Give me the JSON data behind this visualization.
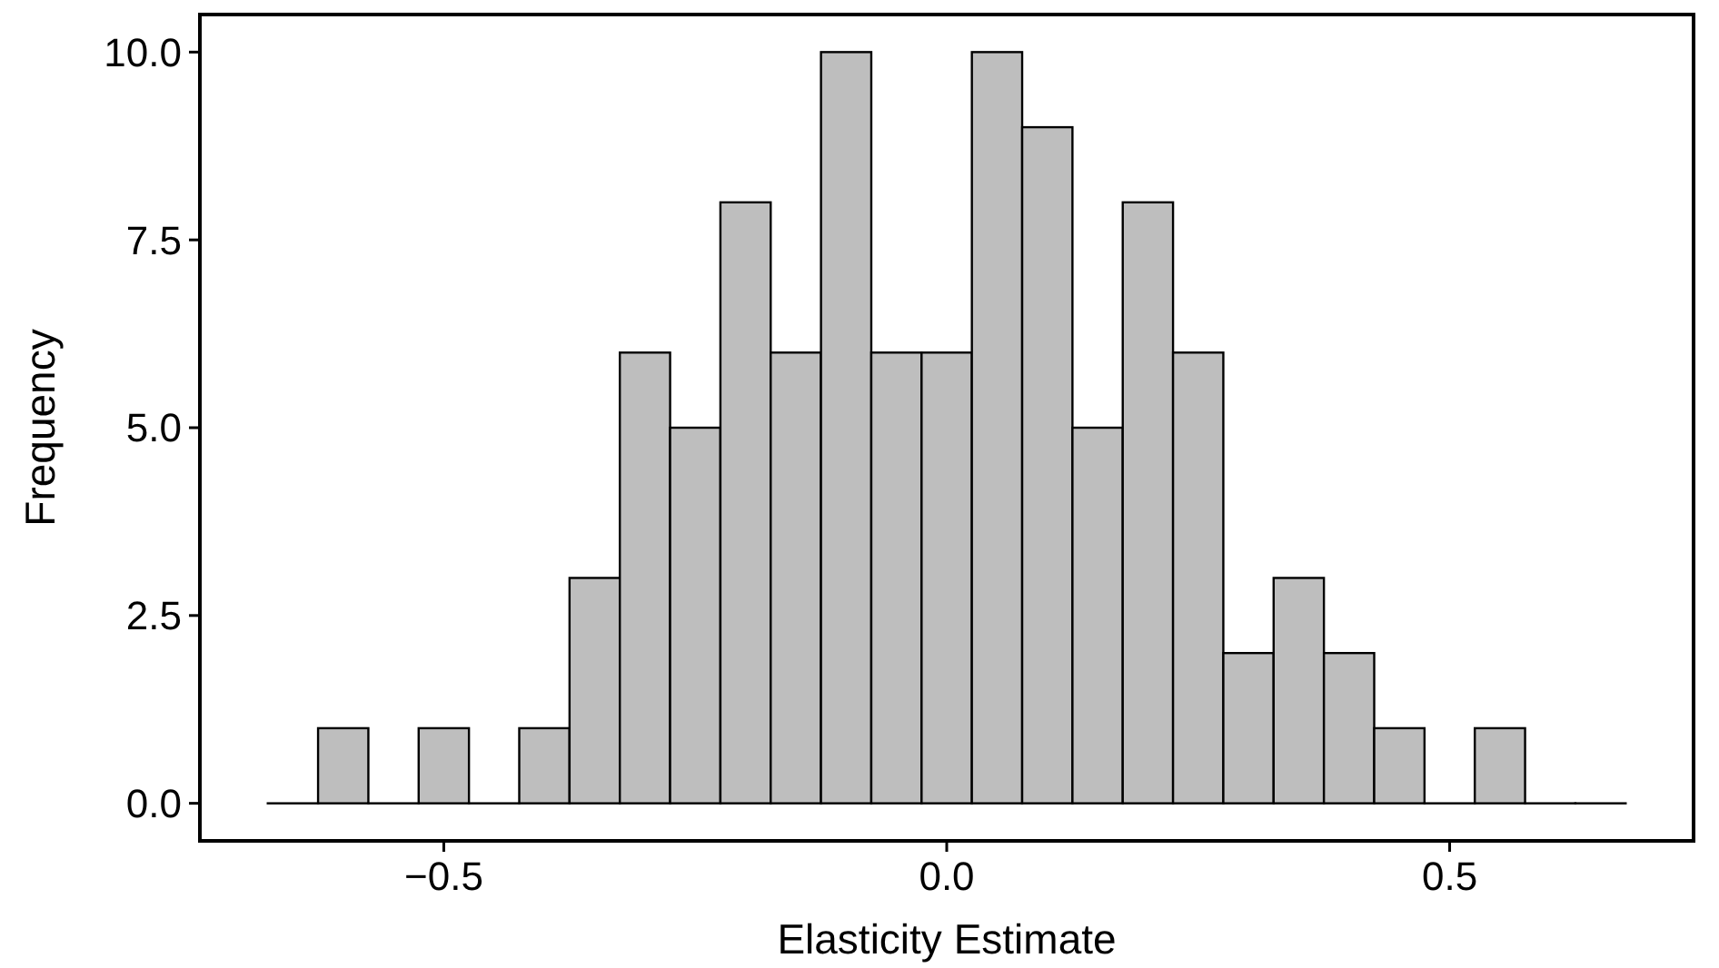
{
  "chart_data": {
    "type": "histogram",
    "xlabel": "Elasticity Estimate",
    "ylabel": "Frequency",
    "bins": [
      -0.675,
      -0.625,
      -0.575,
      -0.525,
      -0.475,
      -0.425,
      -0.375,
      -0.325,
      -0.275,
      -0.225,
      -0.175,
      -0.125,
      -0.075,
      -0.025,
      0.025,
      0.075,
      0.125,
      0.175,
      0.225,
      0.275,
      0.325,
      0.375,
      0.425,
      0.475,
      0.525,
      0.575,
      0.625,
      0.675
    ],
    "values": [
      0,
      1,
      0,
      1,
      0,
      1,
      3,
      6,
      5,
      8,
      6,
      10,
      6,
      6,
      10,
      9,
      5,
      8,
      6,
      2,
      3,
      2,
      1,
      0,
      1,
      0,
      0
    ],
    "color": "#bebebe",
    "xlim": [
      -0.7425,
      0.7425
    ],
    "xticks": [
      {
        "value": -0.5,
        "label": "−0.5"
      },
      {
        "value": 0,
        "label": "0.0"
      },
      {
        "value": 0.5,
        "label": "0.5"
      }
    ],
    "ylim": [
      -0.5,
      10.5
    ],
    "yticks": [
      {
        "value": 0,
        "label": "0.0"
      },
      {
        "value": 2.5,
        "label": "2.5"
      },
      {
        "value": 5,
        "label": "5.0"
      },
      {
        "value": 7.5,
        "label": "7.5"
      },
      {
        "value": 10,
        "label": "10.0"
      }
    ],
    "grid": false
  }
}
